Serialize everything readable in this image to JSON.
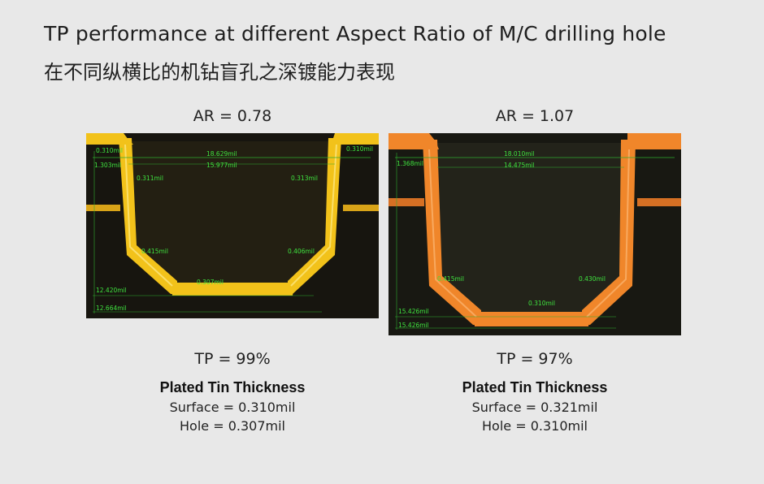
{
  "title_en": "TP performance at different Aspect Ratio of M/C drilling hole",
  "title_cn": "在不同纵横比的机钻盲孔之深镀能力表现",
  "panels": [
    {
      "ar": "AR = 0.78",
      "plating_color": "#f2c21a",
      "measurements": {
        "m1": "0.310mil",
        "m2": "0.310mil",
        "m3": "18.629mil",
        "m4": "15.977mil",
        "m5": "1.303mil",
        "m6": "0.311mil",
        "m7": "0.313mil",
        "m8": "0.415mil",
        "m9": "0.406mil",
        "m10": "0.307mil",
        "m11": "12.420mil",
        "m12": "12.664mil"
      },
      "tp": "TP = 99%",
      "plated_heading": "Plated Tin Thickness",
      "surface": "Surface = 0.310mil",
      "hole": "Hole = 0.307mil"
    },
    {
      "ar": "AR = 1.07",
      "plating_color": "#f0862a",
      "measurements": {
        "m3": "18.010mil",
        "m4": "14.475mil",
        "m5": "1.368mil",
        "m8": "0.415mil",
        "m9": "0.430mil",
        "m10": "0.310mil",
        "m11": "15.426mil",
        "m12": "15.426mil"
      },
      "tp": "TP = 97%",
      "plated_heading": "Plated Tin Thickness",
      "surface": "Surface = 0.321mil",
      "hole": "Hole = 0.310mil"
    }
  ]
}
